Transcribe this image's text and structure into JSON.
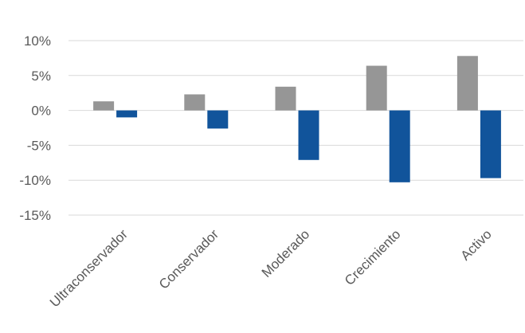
{
  "chart_data": {
    "type": "bar",
    "categories": [
      "Ultraconservador",
      "Conservador",
      "Moderado",
      "Crecimiento",
      "Activo"
    ],
    "series": [
      {
        "values": [
          1.3,
          2.3,
          3.4,
          6.4,
          7.8
        ],
        "color": "#969696"
      },
      {
        "values": [
          -1.0,
          -2.6,
          -7.1,
          -10.3,
          -9.7
        ],
        "color": "#11549b"
      }
    ],
    "yticks": [
      "10%",
      "5%",
      "0%",
      "-5%",
      "-10%",
      "-15%"
    ],
    "ytick_values": [
      10,
      5,
      0,
      -5,
      -10,
      -15
    ],
    "ylim": [
      -15,
      10
    ],
    "grid": true,
    "gridline_color": "#d9d9d9",
    "legend": "none"
  }
}
